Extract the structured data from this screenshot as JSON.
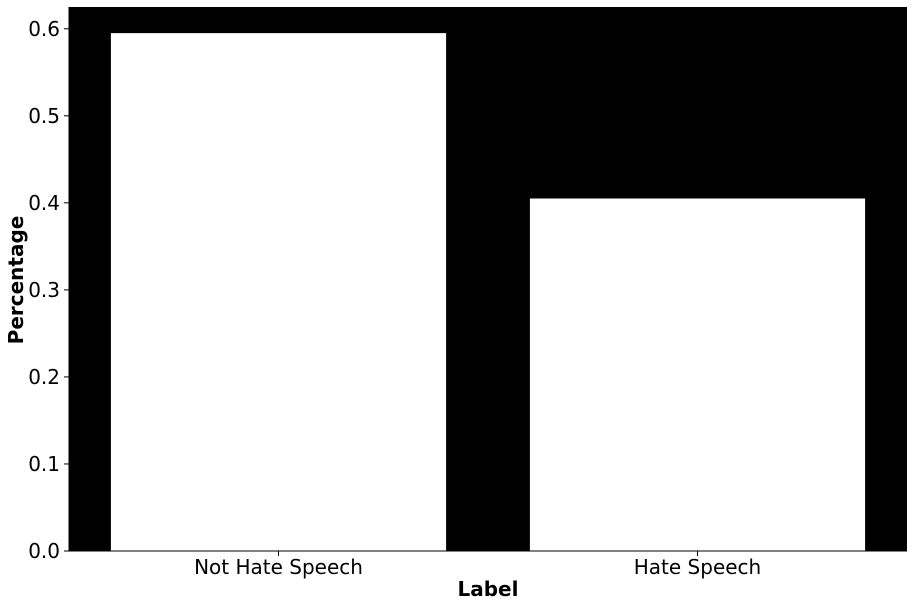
{
  "chart_data": {
    "type": "bar",
    "categories": [
      "Not Hate Speech",
      "Hate Speech"
    ],
    "values": [
      0.595,
      0.405
    ],
    "title": "",
    "xlabel": "Label",
    "ylabel": "Percentage",
    "ylim": [
      0,
      0.625
    ],
    "yticks": [
      "0.0",
      "0.1",
      "0.2",
      "0.3",
      "0.4",
      "0.5",
      "0.6"
    ],
    "grid": false,
    "colors": {
      "plot_background": "#000000",
      "bar_fill": "#ffffff",
      "text": "#000000"
    }
  }
}
